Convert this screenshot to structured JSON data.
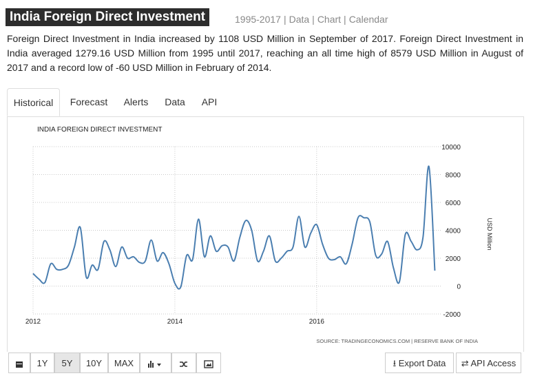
{
  "header": {
    "title": "India Foreign Direct Investment",
    "links": [
      "1995-2017",
      "Data",
      "Chart",
      "Calendar"
    ],
    "link_separator": "|"
  },
  "description": "Foreign Direct Investment in India increased by 1108 USD Million in September of 2017. Foreign Direct Investment in India averaged 1279.16 USD Million from 1995 until 2017, reaching an all time high of 8579 USD Million in August of 2017 and a record low of -60 USD Million in February of 2014.",
  "tabs": [
    "Historical",
    "Forecast",
    "Alerts",
    "Data",
    "API"
  ],
  "chart_data": {
    "type": "line",
    "title": "INDIA FOREIGN DIRECT INVESTMENT",
    "y_label": "USD Million",
    "source": "SOURCE: TRADINGECONOMICS.COM | RESERVE BANK OF INDIA",
    "categories": [
      "2012",
      null,
      null,
      null,
      null,
      null,
      null,
      null,
      null,
      null,
      null,
      null,
      null,
      null,
      null,
      null,
      null,
      null,
      null,
      null,
      null,
      null,
      null,
      null,
      "2014",
      null,
      null,
      null,
      null,
      null,
      null,
      null,
      null,
      null,
      null,
      null,
      null,
      null,
      null,
      null,
      null,
      null,
      null,
      null,
      null,
      null,
      null,
      null,
      "2016",
      null,
      null,
      null,
      null,
      null,
      null,
      null,
      null,
      null,
      null,
      null,
      null,
      null,
      null,
      null,
      null,
      null,
      null,
      null,
      null
    ],
    "values": [
      900,
      500,
      250,
      1600,
      1200,
      1200,
      1500,
      2800,
      4200,
      650,
      1500,
      1200,
      3200,
      2600,
      1400,
      2800,
      2000,
      2100,
      1700,
      1800,
      3300,
      1800,
      2400,
      1600,
      200,
      -60,
      2200,
      1900,
      4800,
      2100,
      3600,
      2500,
      2900,
      2800,
      1800,
      3500,
      4700,
      4000,
      1800,
      2500,
      3600,
      1800,
      2000,
      2500,
      2800,
      5000,
      2800,
      3800,
      4400,
      3000,
      2000,
      1900,
      2100,
      1600,
      3000,
      4900,
      4900,
      4600,
      2200,
      2300,
      3200,
      1300,
      300,
      3700,
      3200,
      2600,
      3500,
      8579,
      1108
    ],
    "color": "#4a7eb0",
    "ylim": [
      -2000,
      10000
    ],
    "yticks": [
      -2000,
      0,
      2000,
      4000,
      6000,
      8000,
      10000
    ],
    "grid": true
  },
  "range_buttons": [
    "1Y",
    "5Y",
    "10Y",
    "MAX"
  ],
  "action_buttons": [
    "Export Data",
    "API Access"
  ]
}
